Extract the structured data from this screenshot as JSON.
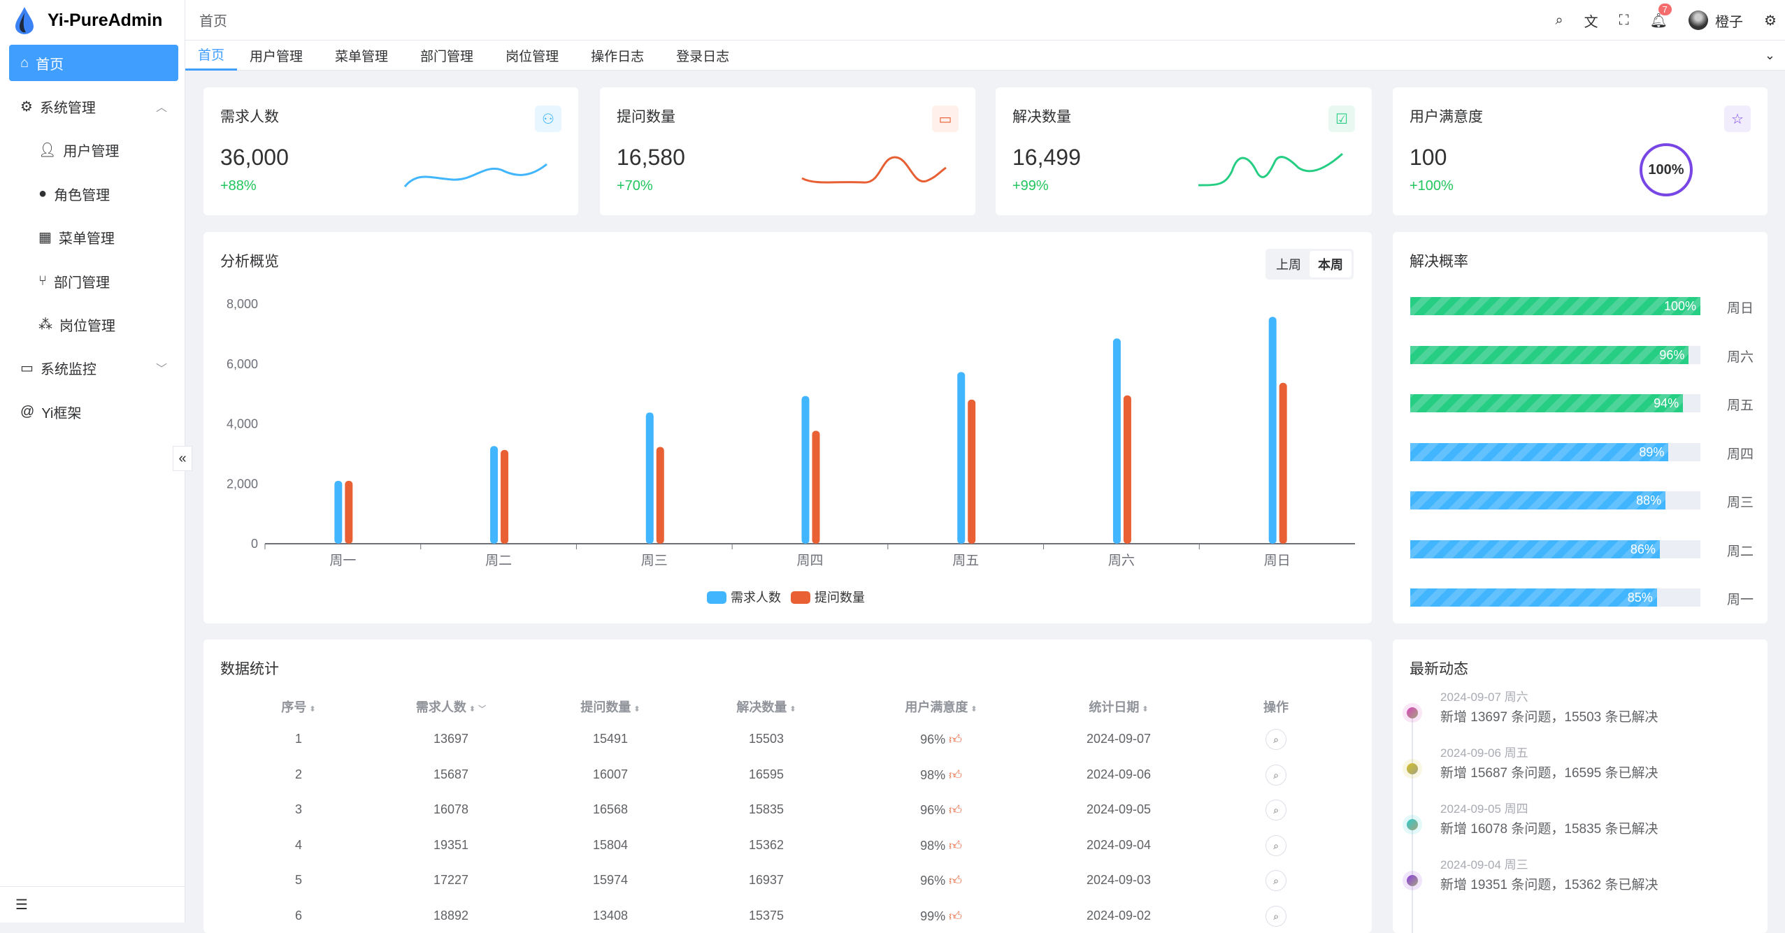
{
  "app": {
    "title": "Yi-PureAdmin"
  },
  "sidebar": {
    "items": [
      {
        "label": "首页",
        "icon": "home-icon",
        "active": true
      },
      {
        "label": "系统管理",
        "icon": "gear-icon",
        "expanded": true
      },
      {
        "label": "用户管理",
        "icon": "user-icon"
      },
      {
        "label": "角色管理",
        "icon": "role-icon"
      },
      {
        "label": "菜单管理",
        "icon": "grid-icon"
      },
      {
        "label": "部门管理",
        "icon": "branch-icon"
      },
      {
        "label": "岗位管理",
        "icon": "org-icon"
      },
      {
        "label": "系统监控",
        "icon": "monitor-icon"
      },
      {
        "label": "Yi框架",
        "icon": "at-icon"
      }
    ]
  },
  "header": {
    "breadcrumb": "首页",
    "notification_count": "7",
    "username": "橙子"
  },
  "tabs": [
    "首页",
    "用户管理",
    "菜单管理",
    "部门管理",
    "岗位管理",
    "操作日志",
    "登录日志"
  ],
  "stats": [
    {
      "title": "需求人数",
      "value": "36,000",
      "change": "+88%",
      "color": "#41b6ff"
    },
    {
      "title": "提问数量",
      "value": "16,580",
      "change": "+70%",
      "color": "#e85f33"
    },
    {
      "title": "解决数量",
      "value": "16,499",
      "change": "+99%",
      "color": "#26ce83"
    },
    {
      "title": "用户满意度",
      "value": "100",
      "change": "+100%",
      "color": "#7846e5",
      "ring": "100%"
    }
  ],
  "overview": {
    "title": "分析概览",
    "toggle": [
      "上周",
      "本周"
    ],
    "selected": "本周"
  },
  "chart_data": {
    "type": "bar",
    "categories": [
      "周一",
      "周二",
      "周三",
      "周四",
      "周五",
      "周六",
      "周日"
    ],
    "series": [
      {
        "name": "需求人数",
        "color": "#41b6ff",
        "values": [
          2100,
          3260,
          4380,
          4930,
          5730,
          6850,
          7570
        ]
      },
      {
        "name": "提问数量",
        "color": "#e86033",
        "values": [
          2100,
          3130,
          3230,
          3770,
          4810,
          4950,
          5370
        ]
      }
    ],
    "ylim": [
      0,
      8000
    ],
    "yticks": [
      "0",
      "2,000",
      "4,000",
      "6,000",
      "8,000"
    ],
    "legend": "bottom"
  },
  "rate": {
    "title": "解决概率",
    "rows": [
      {
        "day": "周日",
        "value": 100,
        "label": "100%",
        "color": "#26ce83"
      },
      {
        "day": "周六",
        "value": 96,
        "label": "96%",
        "color": "#26ce83"
      },
      {
        "day": "周五",
        "value": 94,
        "label": "94%",
        "color": "#26ce83"
      },
      {
        "day": "周四",
        "value": 89,
        "label": "89%",
        "color": "#41b6ff"
      },
      {
        "day": "周三",
        "value": 88,
        "label": "88%",
        "color": "#41b6ff"
      },
      {
        "day": "周二",
        "value": 86,
        "label": "86%",
        "color": "#41b6ff"
      },
      {
        "day": "周一",
        "value": 85,
        "label": "85%",
        "color": "#41b6ff"
      }
    ]
  },
  "table": {
    "title": "数据统计",
    "columns": [
      "序号",
      "需求人数",
      "提问数量",
      "解决数量",
      "用户满意度",
      "统计日期",
      "操作"
    ],
    "rows": [
      [
        "1",
        "13697",
        "15491",
        "15503",
        "96%",
        "2024-09-07"
      ],
      [
        "2",
        "15687",
        "16007",
        "16595",
        "98%",
        "2024-09-06"
      ],
      [
        "3",
        "16078",
        "16568",
        "15835",
        "96%",
        "2024-09-05"
      ],
      [
        "4",
        "19351",
        "15804",
        "15362",
        "98%",
        "2024-09-04"
      ],
      [
        "5",
        "17227",
        "15974",
        "16937",
        "96%",
        "2024-09-03"
      ],
      [
        "6",
        "18892",
        "13408",
        "15375",
        "99%",
        "2024-09-02"
      ]
    ]
  },
  "timeline": {
    "title": "最新动态",
    "items": [
      {
        "date": "2024-09-07 周六",
        "text": "新增 13697 条问题，15503 条已解决",
        "color": "#d946b8"
      },
      {
        "date": "2024-09-06 周五",
        "text": "新增 15687 条问题，16595 条已解决",
        "color": "#d4c02a"
      },
      {
        "date": "2024-09-05 周四",
        "text": "新增 16078 条问题，15835 条已解决",
        "color": "#2ec9c9"
      },
      {
        "date": "2024-09-04 周三",
        "text": "新增 19351 条问题，15362 条已解决",
        "color": "#8b3fe0"
      }
    ]
  }
}
